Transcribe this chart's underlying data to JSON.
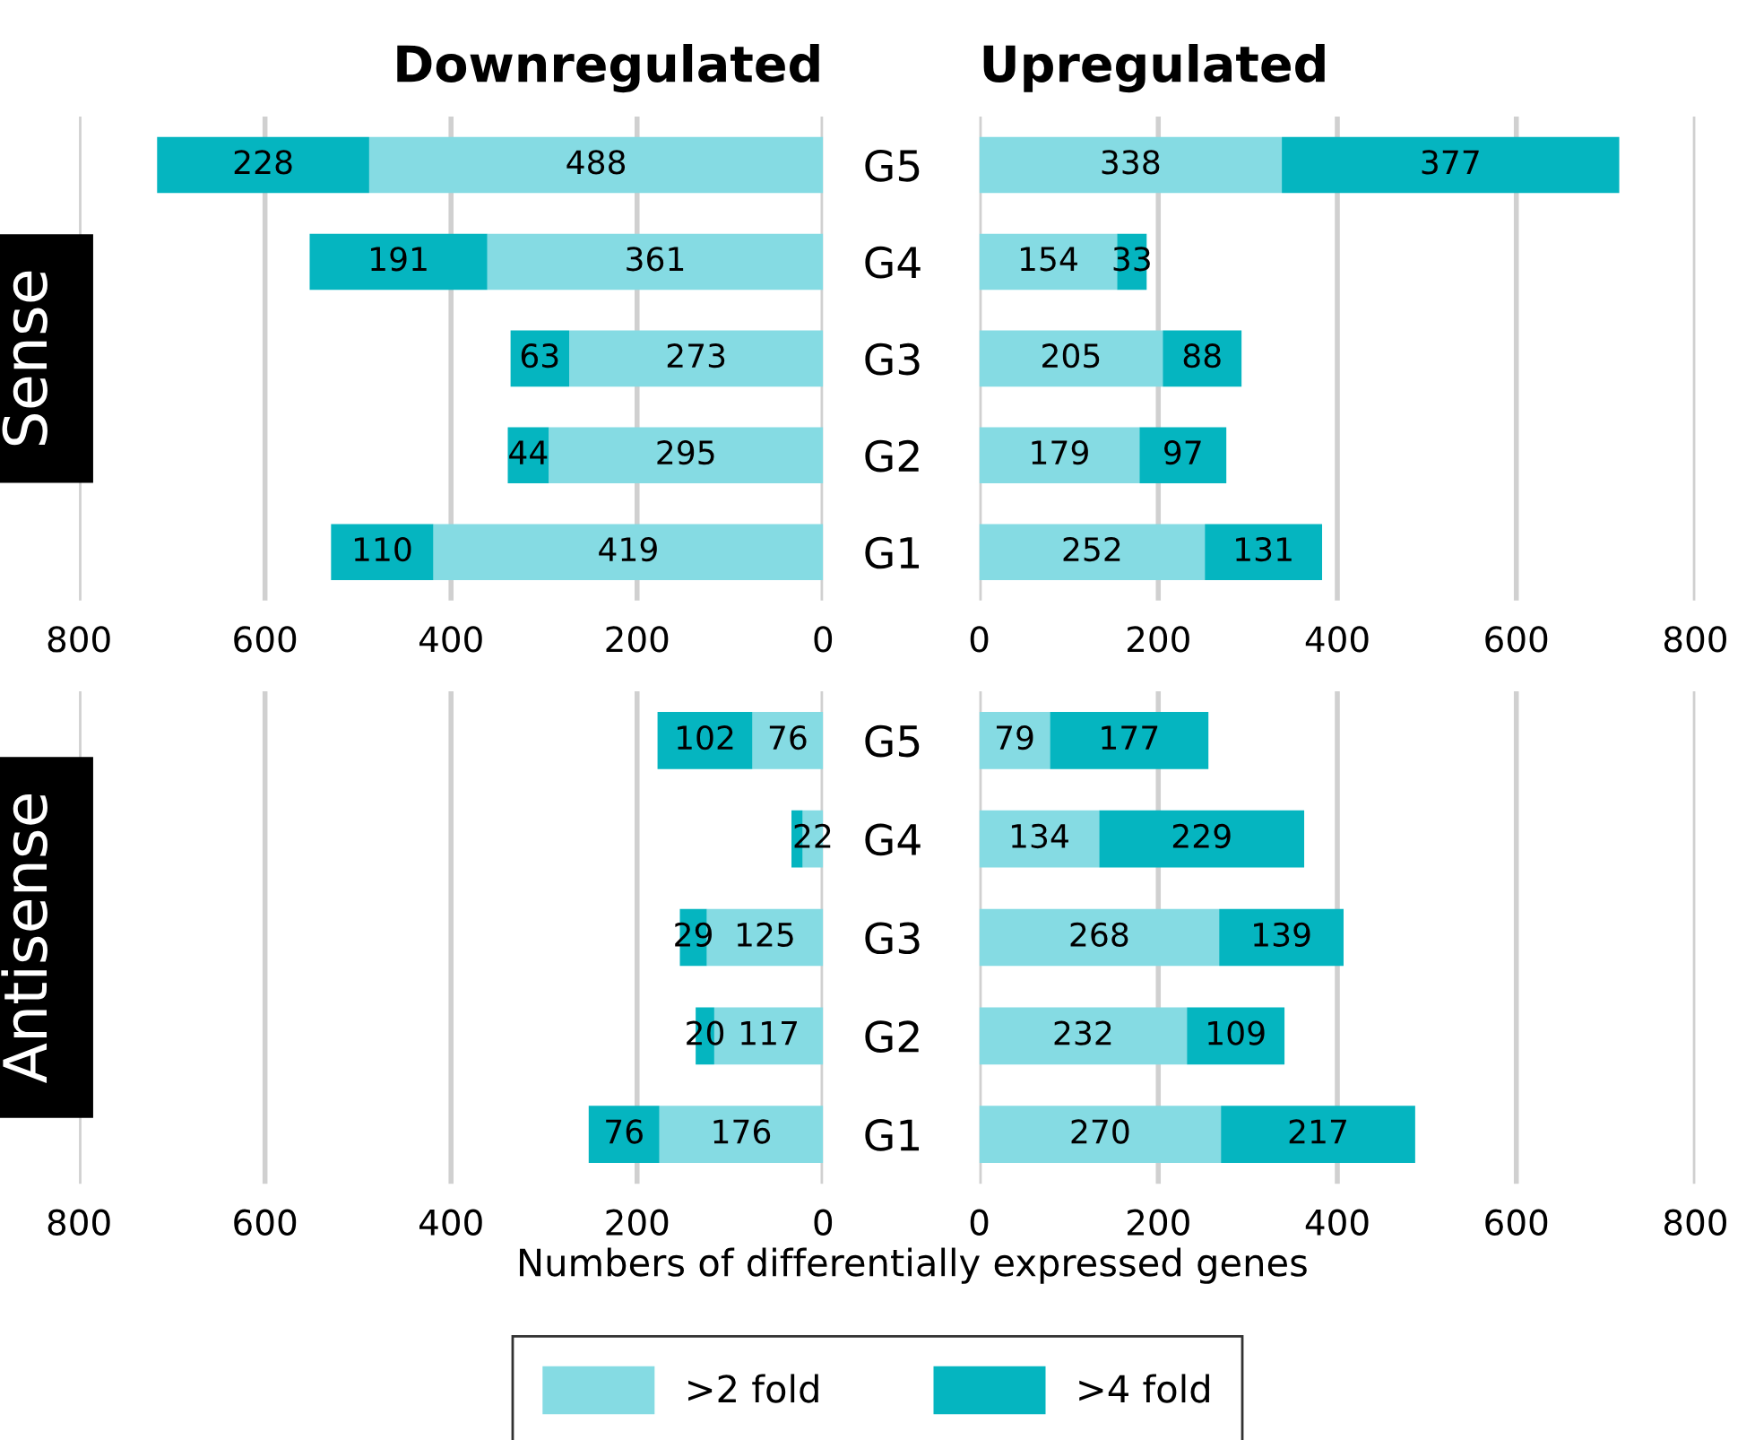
{
  "chart_data": [
    {
      "type": "bar",
      "orientation": "horizontal",
      "stacked": true,
      "title": "Downregulated",
      "ylabel": "Sense",
      "categories": [
        "G5",
        "G4",
        "G3",
        "G2",
        "G1"
      ],
      "xlim": [
        800,
        0
      ],
      "xticks": [
        800,
        600,
        400,
        200,
        0
      ],
      "grid": "x",
      "data_labels": true,
      "legend": "bottom",
      "series": [
        {
          "name": ">2 fold",
          "color": "#85dbe3",
          "values": [
            488,
            361,
            273,
            295,
            419
          ]
        },
        {
          "name": ">4 fold",
          "color": "#05b5c0",
          "values": [
            228,
            191,
            63,
            44,
            110
          ]
        }
      ]
    },
    {
      "type": "bar",
      "orientation": "horizontal",
      "stacked": true,
      "title": "Upregulated",
      "categories": [
        null,
        null,
        null,
        null,
        null
      ],
      "xlim": [
        0,
        800
      ],
      "xticks": [
        0,
        200,
        400,
        600,
        800
      ],
      "grid": "x",
      "tick_labels": "x",
      "data_labels": true,
      "series": [
        {
          "color": "#85dbe3",
          "values": [
            338,
            154,
            205,
            179,
            252
          ]
        },
        {
          "color": "#05b5c0",
          "values": [
            377,
            33,
            88,
            97,
            131
          ]
        }
      ]
    },
    {
      "type": "bar",
      "orientation": "horizontal",
      "stacked": true,
      "ylabel": "Antisense",
      "xlabel": "Numbers of differentially expressed genes",
      "categories": [
        "G5",
        "G4",
        "G3",
        "G2",
        "G1"
      ],
      "xlim": [
        800,
        0
      ],
      "xticks": [
        800,
        600,
        400,
        200,
        0
      ],
      "grid": "x",
      "series": [
        {
          "color": "#85dbe3",
          "values": [
            76,
            22,
            125,
            117,
            176
          ],
          "value_labels": [
            "76",
            "22",
            "125",
            "117",
            "176"
          ]
        },
        {
          "color": "#05b5c0",
          "values": [
            102,
            12,
            29,
            20,
            76
          ],
          "value_labels": [
            "102",
            null,
            "29",
            "20",
            "76"
          ]
        }
      ]
    },
    {
      "type": "bar",
      "orientation": "horizontal",
      "stacked": true,
      "categories": [
        null,
        null,
        null,
        null,
        null
      ],
      "xlim": [
        0,
        800
      ],
      "xticks": [
        0,
        200,
        400,
        600,
        800
      ],
      "grid": "x",
      "tick_labels": "x",
      "data_labels": true,
      "series": [
        {
          "color": "#85dbe3",
          "values": [
            79,
            134,
            268,
            232,
            270
          ]
        },
        {
          "color": "#05b5c0",
          "values": [
            177,
            229,
            139,
            109,
            217
          ]
        }
      ]
    }
  ]
}
